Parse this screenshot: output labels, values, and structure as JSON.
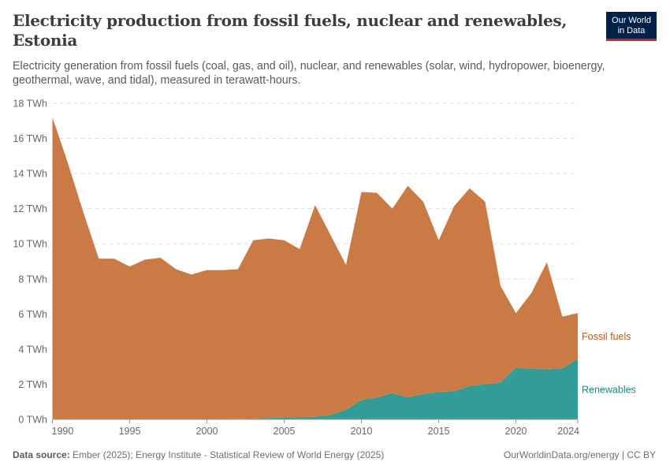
{
  "header": {
    "title": "Electricity production from fossil fuels, nuclear and renewables, Estonia",
    "subtitle": "Electricity generation from fossil fuels (coal, gas, and oil), nuclear, and renewables (solar, wind, hydropower, bioenergy, geothermal, wave, and tidal), measured in terawatt-hours.",
    "logo_line1": "Our World",
    "logo_line2": "in Data"
  },
  "footer": {
    "source_label": "Data source:",
    "source_text": "Ember (2025); Energy Institute - Statistical Review of World Energy (2025)",
    "credit": "OurWorldinData.org/energy | CC BY"
  },
  "chart_data": {
    "type": "area",
    "stacked": true,
    "title": "Electricity production from fossil fuels, nuclear and renewables, Estonia",
    "xlabel": "",
    "ylabel": "",
    "x": [
      1990,
      1991,
      1992,
      1993,
      1994,
      1995,
      1996,
      1997,
      1998,
      1999,
      2000,
      2001,
      2002,
      2003,
      2004,
      2005,
      2006,
      2007,
      2008,
      2009,
      2010,
      2011,
      2012,
      2013,
      2014,
      2015,
      2016,
      2017,
      2018,
      2019,
      2020,
      2021,
      2022,
      2023,
      2024
    ],
    "xticks": [
      "1990",
      "1995",
      "2000",
      "2005",
      "2010",
      "2015",
      "2020",
      "2024"
    ],
    "xtick_values": [
      1990,
      1995,
      2000,
      2005,
      2010,
      2015,
      2020,
      2024
    ],
    "yticks": [
      "0 TWh",
      "2 TWh",
      "4 TWh",
      "6 TWh",
      "8 TWh",
      "10 TWh",
      "12 TWh",
      "14 TWh",
      "16 TWh",
      "18 TWh"
    ],
    "ytick_values": [
      0,
      2,
      4,
      6,
      8,
      10,
      12,
      14,
      16,
      18
    ],
    "ylim": [
      0,
      18
    ],
    "grid": "horizontal-dashed",
    "legend": "right-inline",
    "series": [
      {
        "name": "Renewables",
        "color": "#349c96",
        "label_color": "#1a8a84",
        "values": [
          0.0,
          0.0,
          0.0,
          0.0,
          0.0,
          0.0,
          0.01,
          0.01,
          0.01,
          0.01,
          0.02,
          0.02,
          0.03,
          0.05,
          0.08,
          0.11,
          0.13,
          0.15,
          0.25,
          0.55,
          1.1,
          1.25,
          1.5,
          1.25,
          1.45,
          1.57,
          1.6,
          1.9,
          2.0,
          2.1,
          2.95,
          2.88,
          2.85,
          2.9,
          3.45
        ]
      },
      {
        "name": "Fossil fuels",
        "color": "#ca7a44",
        "label_color": "#c15a1a",
        "values": [
          17.2,
          14.6,
          11.8,
          9.15,
          9.15,
          8.7,
          9.09,
          9.19,
          8.54,
          8.24,
          8.48,
          8.48,
          8.52,
          10.15,
          10.22,
          10.09,
          9.57,
          12.05,
          10.25,
          8.25,
          11.85,
          11.65,
          10.5,
          12.05,
          10.95,
          8.63,
          10.55,
          11.25,
          10.4,
          5.5,
          3.1,
          4.32,
          6.1,
          2.95,
          2.6
        ]
      }
    ]
  }
}
